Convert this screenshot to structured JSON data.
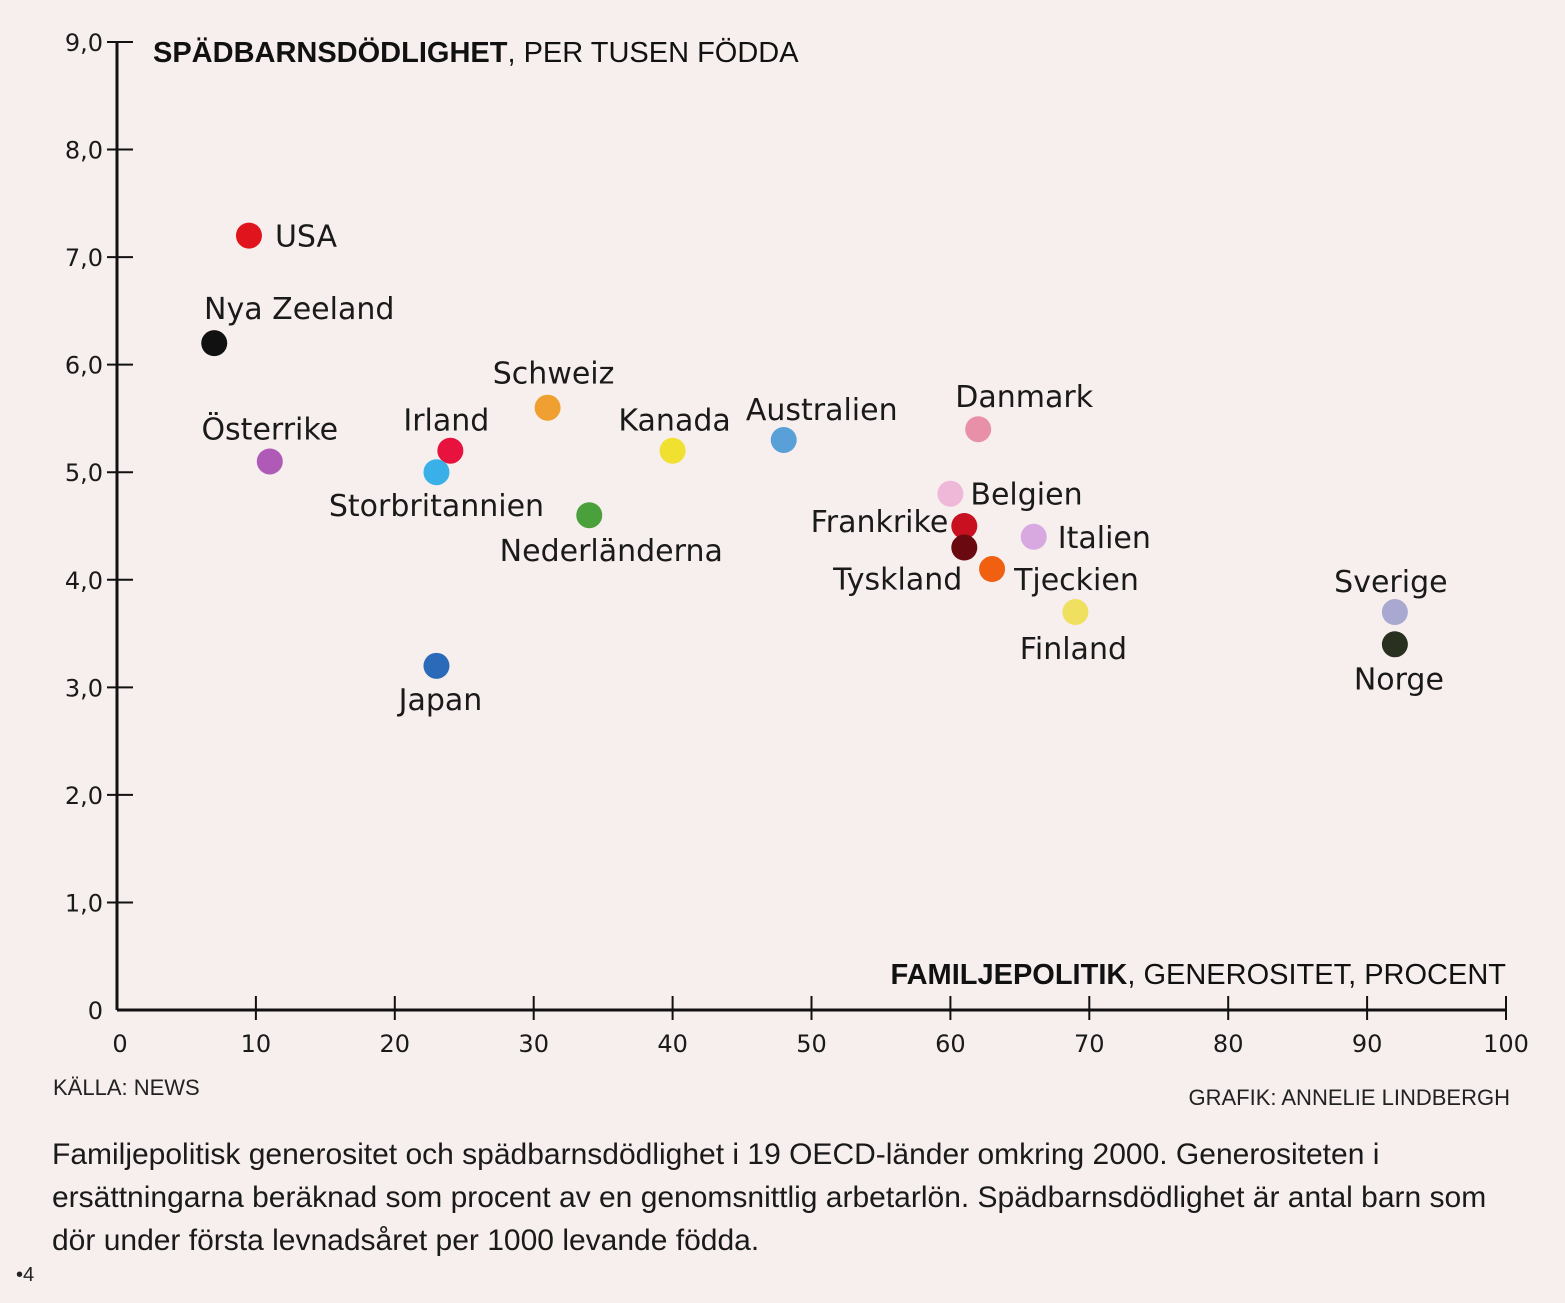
{
  "chart_data": {
    "type": "scatter",
    "title_bold": "SPÄDBARNSDÖDLIGHET",
    "title_rest": ", PER TUSEN FÖDDA",
    "xlabel_bold": "FAMILJEPOLITIK",
    "xlabel_rest": ", GENEROSITET, PROCENT",
    "xlim": [
      0,
      100
    ],
    "ylim": [
      0,
      9
    ],
    "x_ticks": [
      "0",
      "10",
      "20",
      "30",
      "40",
      "50",
      "60",
      "70",
      "80",
      "90",
      "100"
    ],
    "y_ticks": [
      "0",
      "1,0",
      "2,0",
      "3,0",
      "4,0",
      "5,0",
      "6,0",
      "7,0",
      "8,0",
      "9,0"
    ],
    "grid": false,
    "points": [
      {
        "name": "USA",
        "x": 9.5,
        "y": 7.2,
        "color": "#e0141c"
      },
      {
        "name": "Nya Zeeland",
        "x": 7,
        "y": 6.2,
        "color": "#111111"
      },
      {
        "name": "Österrike",
        "x": 11,
        "y": 5.1,
        "color": "#b05ab8"
      },
      {
        "name": "Irland",
        "x": 24,
        "y": 5.2,
        "color": "#e8123e"
      },
      {
        "name": "Storbritannien",
        "x": 23,
        "y": 5.0,
        "color": "#3ab0e8"
      },
      {
        "name": "Schweiz",
        "x": 31,
        "y": 5.6,
        "color": "#f0a030"
      },
      {
        "name": "Nederländerna",
        "x": 34,
        "y": 4.6,
        "color": "#4aa03a"
      },
      {
        "name": "Kanada",
        "x": 40,
        "y": 5.2,
        "color": "#f0e030"
      },
      {
        "name": "Japan",
        "x": 23,
        "y": 3.2,
        "color": "#2a6ab8"
      },
      {
        "name": "Australien",
        "x": 48,
        "y": 5.3,
        "color": "#5aa0d8"
      },
      {
        "name": "Danmark",
        "x": 62,
        "y": 5.4,
        "color": "#e890a8"
      },
      {
        "name": "Belgien",
        "x": 60,
        "y": 4.8,
        "color": "#f0b8d8"
      },
      {
        "name": "Frankrike",
        "x": 61,
        "y": 4.5,
        "color": "#c81020"
      },
      {
        "name": "Tyskland",
        "x": 61,
        "y": 4.3,
        "color": "#6a0a10"
      },
      {
        "name": "Italien",
        "x": 66,
        "y": 4.4,
        "color": "#d8a8e0"
      },
      {
        "name": "Tjeckien",
        "x": 63,
        "y": 4.1,
        "color": "#f06010"
      },
      {
        "name": "Finland",
        "x": 69,
        "y": 3.7,
        "color": "#f0e060"
      },
      {
        "name": "Sverige",
        "x": 92,
        "y": 3.7,
        "color": "#a8a8d0"
      },
      {
        "name": "Norge",
        "x": 92,
        "y": 3.4,
        "color": "#2a3020"
      }
    ]
  },
  "source": "KÄLLA: NEWS",
  "credit": "GRAFIK: ANNELIE LINDBERGH",
  "caption": "Familjepolitisk generositet och spädbarnsdödlighet i 19 OECD-länder omkring 2000. Generositeten i ersättningarna beräknad som procent av en genomsnittlig arbetarlön. Spädbarnsdödlighet är antal barn som dör under första levnadsåret per 1000 levande födda.",
  "page_number": "•4"
}
